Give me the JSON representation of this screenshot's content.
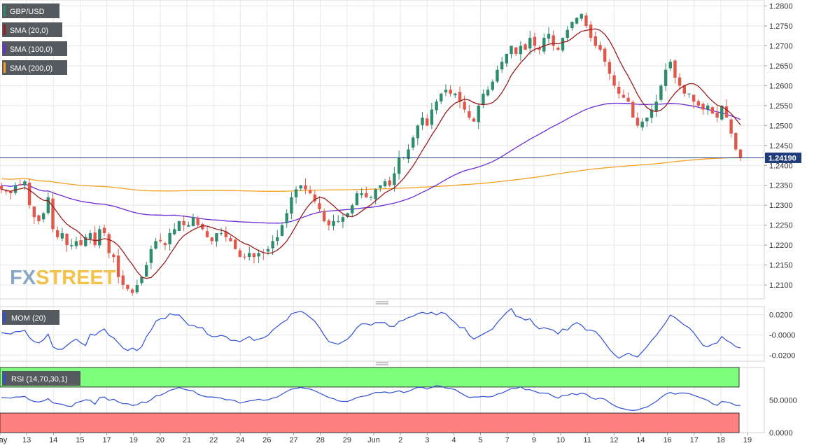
{
  "colors": {
    "bull": "#2e8b6f",
    "bear": "#e0574b",
    "sma20": "#9b1c1c",
    "sma100": "#6a2bd9",
    "sma200": "#f5a122",
    "mom": "#2f4fd9",
    "rsi": "#2f4fd9",
    "rsi_over": "#7dff7d",
    "rsi_under": "#ff8080",
    "price_line": "#1f3b7a",
    "grid": "#e6e6e6"
  },
  "watermark": {
    "part1": "FX",
    "part2": "STREET"
  },
  "chart_data": [
    {
      "type": "candlestick",
      "title": "",
      "legend": [
        {
          "label": "GBP/USD",
          "color": "#2e8b6f"
        },
        {
          "label": "SMA (20,0)",
          "color": "#9b1c1c"
        },
        {
          "label": "SMA (100,0)",
          "color": "#6a2bd9"
        },
        {
          "label": "SMA (200,0)",
          "color": "#f5a122"
        }
      ],
      "ylim": [
        1.2065,
        1.2815
      ],
      "y_ticks": [
        "1.2800",
        "1.2750",
        "1.2700",
        "1.2650",
        "1.2600",
        "1.2550",
        "1.2500",
        "1.2450",
        "1.2400",
        "1.2350",
        "1.2300",
        "1.2250",
        "1.2200",
        "1.2150",
        "1.2100"
      ],
      "last_price": "1.24190",
      "x_labels": [
        "May",
        "13",
        "14",
        "15",
        "17",
        "19",
        "20",
        "21",
        "22",
        "24",
        "26",
        "27",
        "28",
        "29",
        "Jun",
        "2",
        "3",
        "4",
        "5",
        "7",
        "9",
        "10",
        "11",
        "12",
        "14",
        "16",
        "17",
        "18",
        "19"
      ],
      "closes": [
        1.234,
        1.2335,
        1.233,
        1.235,
        1.235,
        1.236,
        1.23,
        1.227,
        1.226,
        1.228,
        1.232,
        1.224,
        1.222,
        1.223,
        1.22,
        1.22,
        1.221,
        1.22,
        1.222,
        1.223,
        1.22,
        1.224,
        1.223,
        1.218,
        1.217,
        1.212,
        1.21,
        1.209,
        1.208,
        1.21,
        1.212,
        1.215,
        1.219,
        1.221,
        1.221,
        1.22,
        1.223,
        1.224,
        1.226,
        1.225,
        1.225,
        1.227,
        1.225,
        1.224,
        1.222,
        1.221,
        1.223,
        1.223,
        1.222,
        1.221,
        1.219,
        1.217,
        1.217,
        1.218,
        1.217,
        1.218,
        1.218,
        1.219,
        1.221,
        1.222,
        1.225,
        1.228,
        1.232,
        1.234,
        1.235,
        1.234,
        1.233,
        1.231,
        1.229,
        1.226,
        1.225,
        1.226,
        1.226,
        1.227,
        1.228,
        1.23,
        1.233,
        1.233,
        1.232,
        1.232,
        1.234,
        1.235,
        1.236,
        1.235,
        1.238,
        1.242,
        1.242,
        1.244,
        1.247,
        1.25,
        1.252,
        1.25,
        1.254,
        1.256,
        1.258,
        1.259,
        1.258,
        1.258,
        1.256,
        1.254,
        1.252,
        1.251,
        1.255,
        1.258,
        1.259,
        1.261,
        1.264,
        1.266,
        1.268,
        1.27,
        1.268,
        1.27,
        1.269,
        1.272,
        1.27,
        1.269,
        1.272,
        1.273,
        1.27,
        1.269,
        1.272,
        1.274,
        1.276,
        1.277,
        1.278,
        1.275,
        1.272,
        1.27,
        1.269,
        1.266,
        1.263,
        1.26,
        1.258,
        1.257,
        1.256,
        1.252,
        1.25,
        1.251,
        1.252,
        1.254,
        1.256,
        1.26,
        1.264,
        1.266,
        1.262,
        1.26,
        1.258,
        1.258,
        1.256,
        1.255,
        1.254,
        1.255,
        1.253,
        1.252,
        1.255,
        1.252,
        1.248,
        1.244,
        1.242
      ],
      "sma20_range": [
        1.216,
        1.272
      ],
      "sma100_range": [
        1.2255,
        1.2556
      ],
      "sma200_range": [
        1.2335,
        1.242
      ]
    },
    {
      "type": "line",
      "title": "",
      "legend": [
        {
          "label": "MOM (20)",
          "color": "#2f4fd9"
        }
      ],
      "y_ticks": [
        "0.0200",
        "-0.0000",
        "-0.0200"
      ],
      "ylim": [
        -0.026,
        0.028
      ]
    },
    {
      "type": "line",
      "title": "",
      "legend": [
        {
          "label": "RSI (14,70,30,1)",
          "color": "#2f4fd9"
        }
      ],
      "y_ticks": [
        "50.0000",
        "0.0000"
      ],
      "ylim": [
        0,
        100
      ],
      "overbought": 70,
      "oversold": 30
    }
  ]
}
